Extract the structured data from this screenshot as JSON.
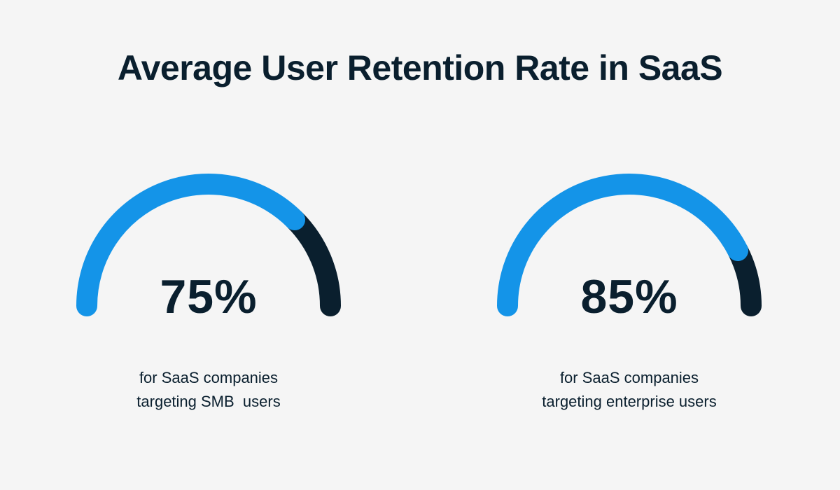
{
  "title": "Average User Retention Rate in SaaS",
  "colors": {
    "filled": "#1494e8",
    "remaining": "#0a1f2e",
    "background": "#f5f5f5",
    "text": "#0a1f2e"
  },
  "chart_data": [
    {
      "type": "gauge",
      "value": 75,
      "max": 100,
      "label": "75%",
      "caption": [
        "for SaaS companies",
        "targeting SMB  users"
      ]
    },
    {
      "type": "gauge",
      "value": 85,
      "max": 100,
      "label": "85%",
      "caption": [
        "for SaaS companies",
        "targeting enterprise users"
      ]
    }
  ]
}
